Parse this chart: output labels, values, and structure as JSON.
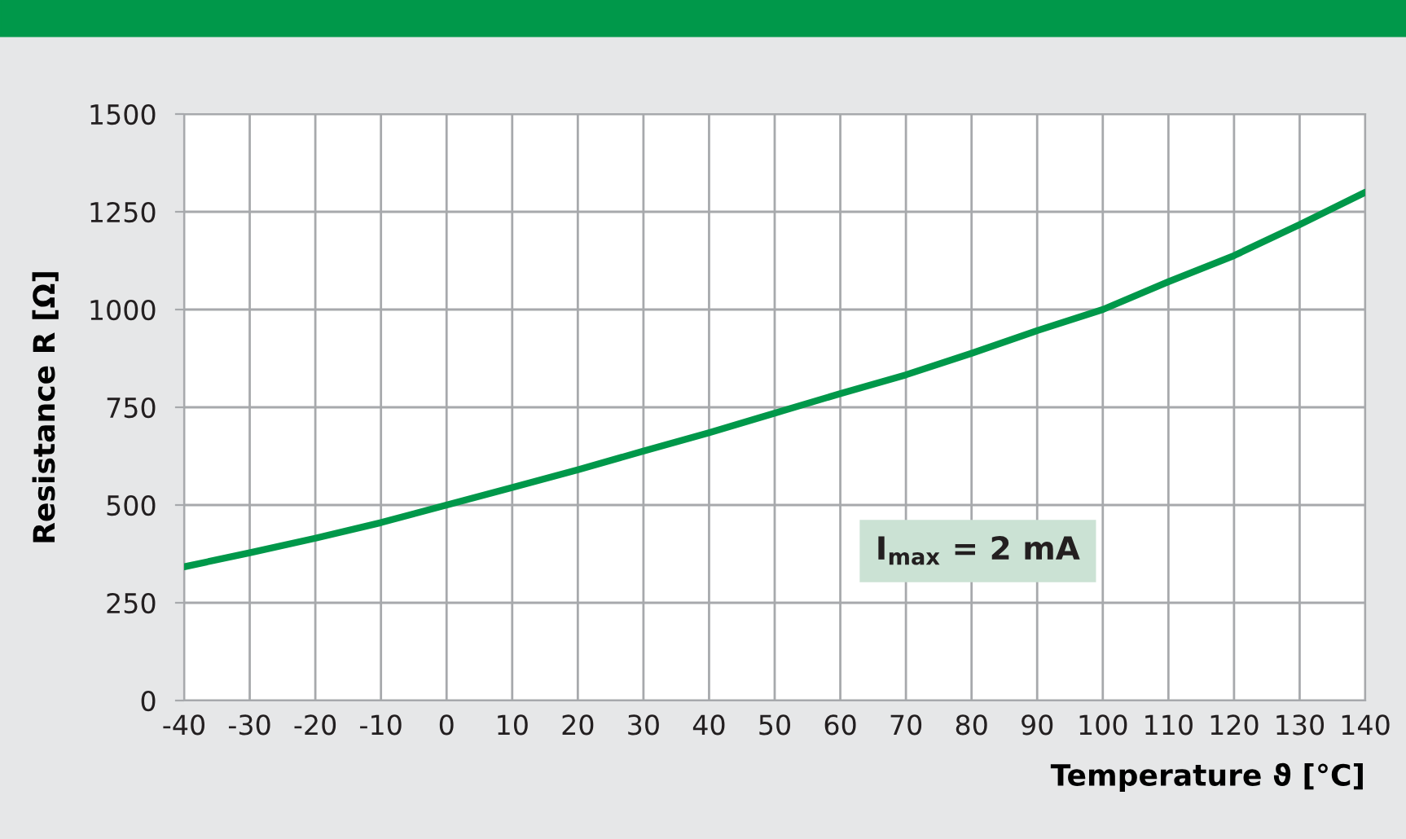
{
  "chart_data": {
    "type": "line",
    "x": [
      -40,
      -30,
      -20,
      -10,
      0,
      10,
      20,
      30,
      40,
      50,
      60,
      70,
      80,
      90,
      100,
      110,
      120,
      130,
      140
    ],
    "series": [
      {
        "color": "#00984a",
        "values": [
          342,
          378,
          415,
          455,
          500,
          545,
          590,
          638,
          685,
          735,
          785,
          833,
          888,
          946,
          1000,
          1071,
          1138,
          1217,
          1300
        ]
      }
    ],
    "xlabel": "Temperature ϑ [°C]",
    "ylabel": "Resistance R [Ω]",
    "annotations": [
      "I$_{max}$ = 2 mA"
    ],
    "xlim": [
      -40,
      140
    ],
    "xticks": [
      -40,
      -30,
      -20,
      -10,
      0,
      10,
      20,
      30,
      40,
      50,
      60,
      70,
      80,
      90,
      100,
      110,
      120,
      130,
      140
    ],
    "ylim": [
      0,
      1500
    ],
    "yticks": [
      0,
      250,
      500,
      750,
      1000,
      1250,
      1500
    ],
    "grid": true,
    "marker": "none",
    "line_style": "solid"
  }
}
